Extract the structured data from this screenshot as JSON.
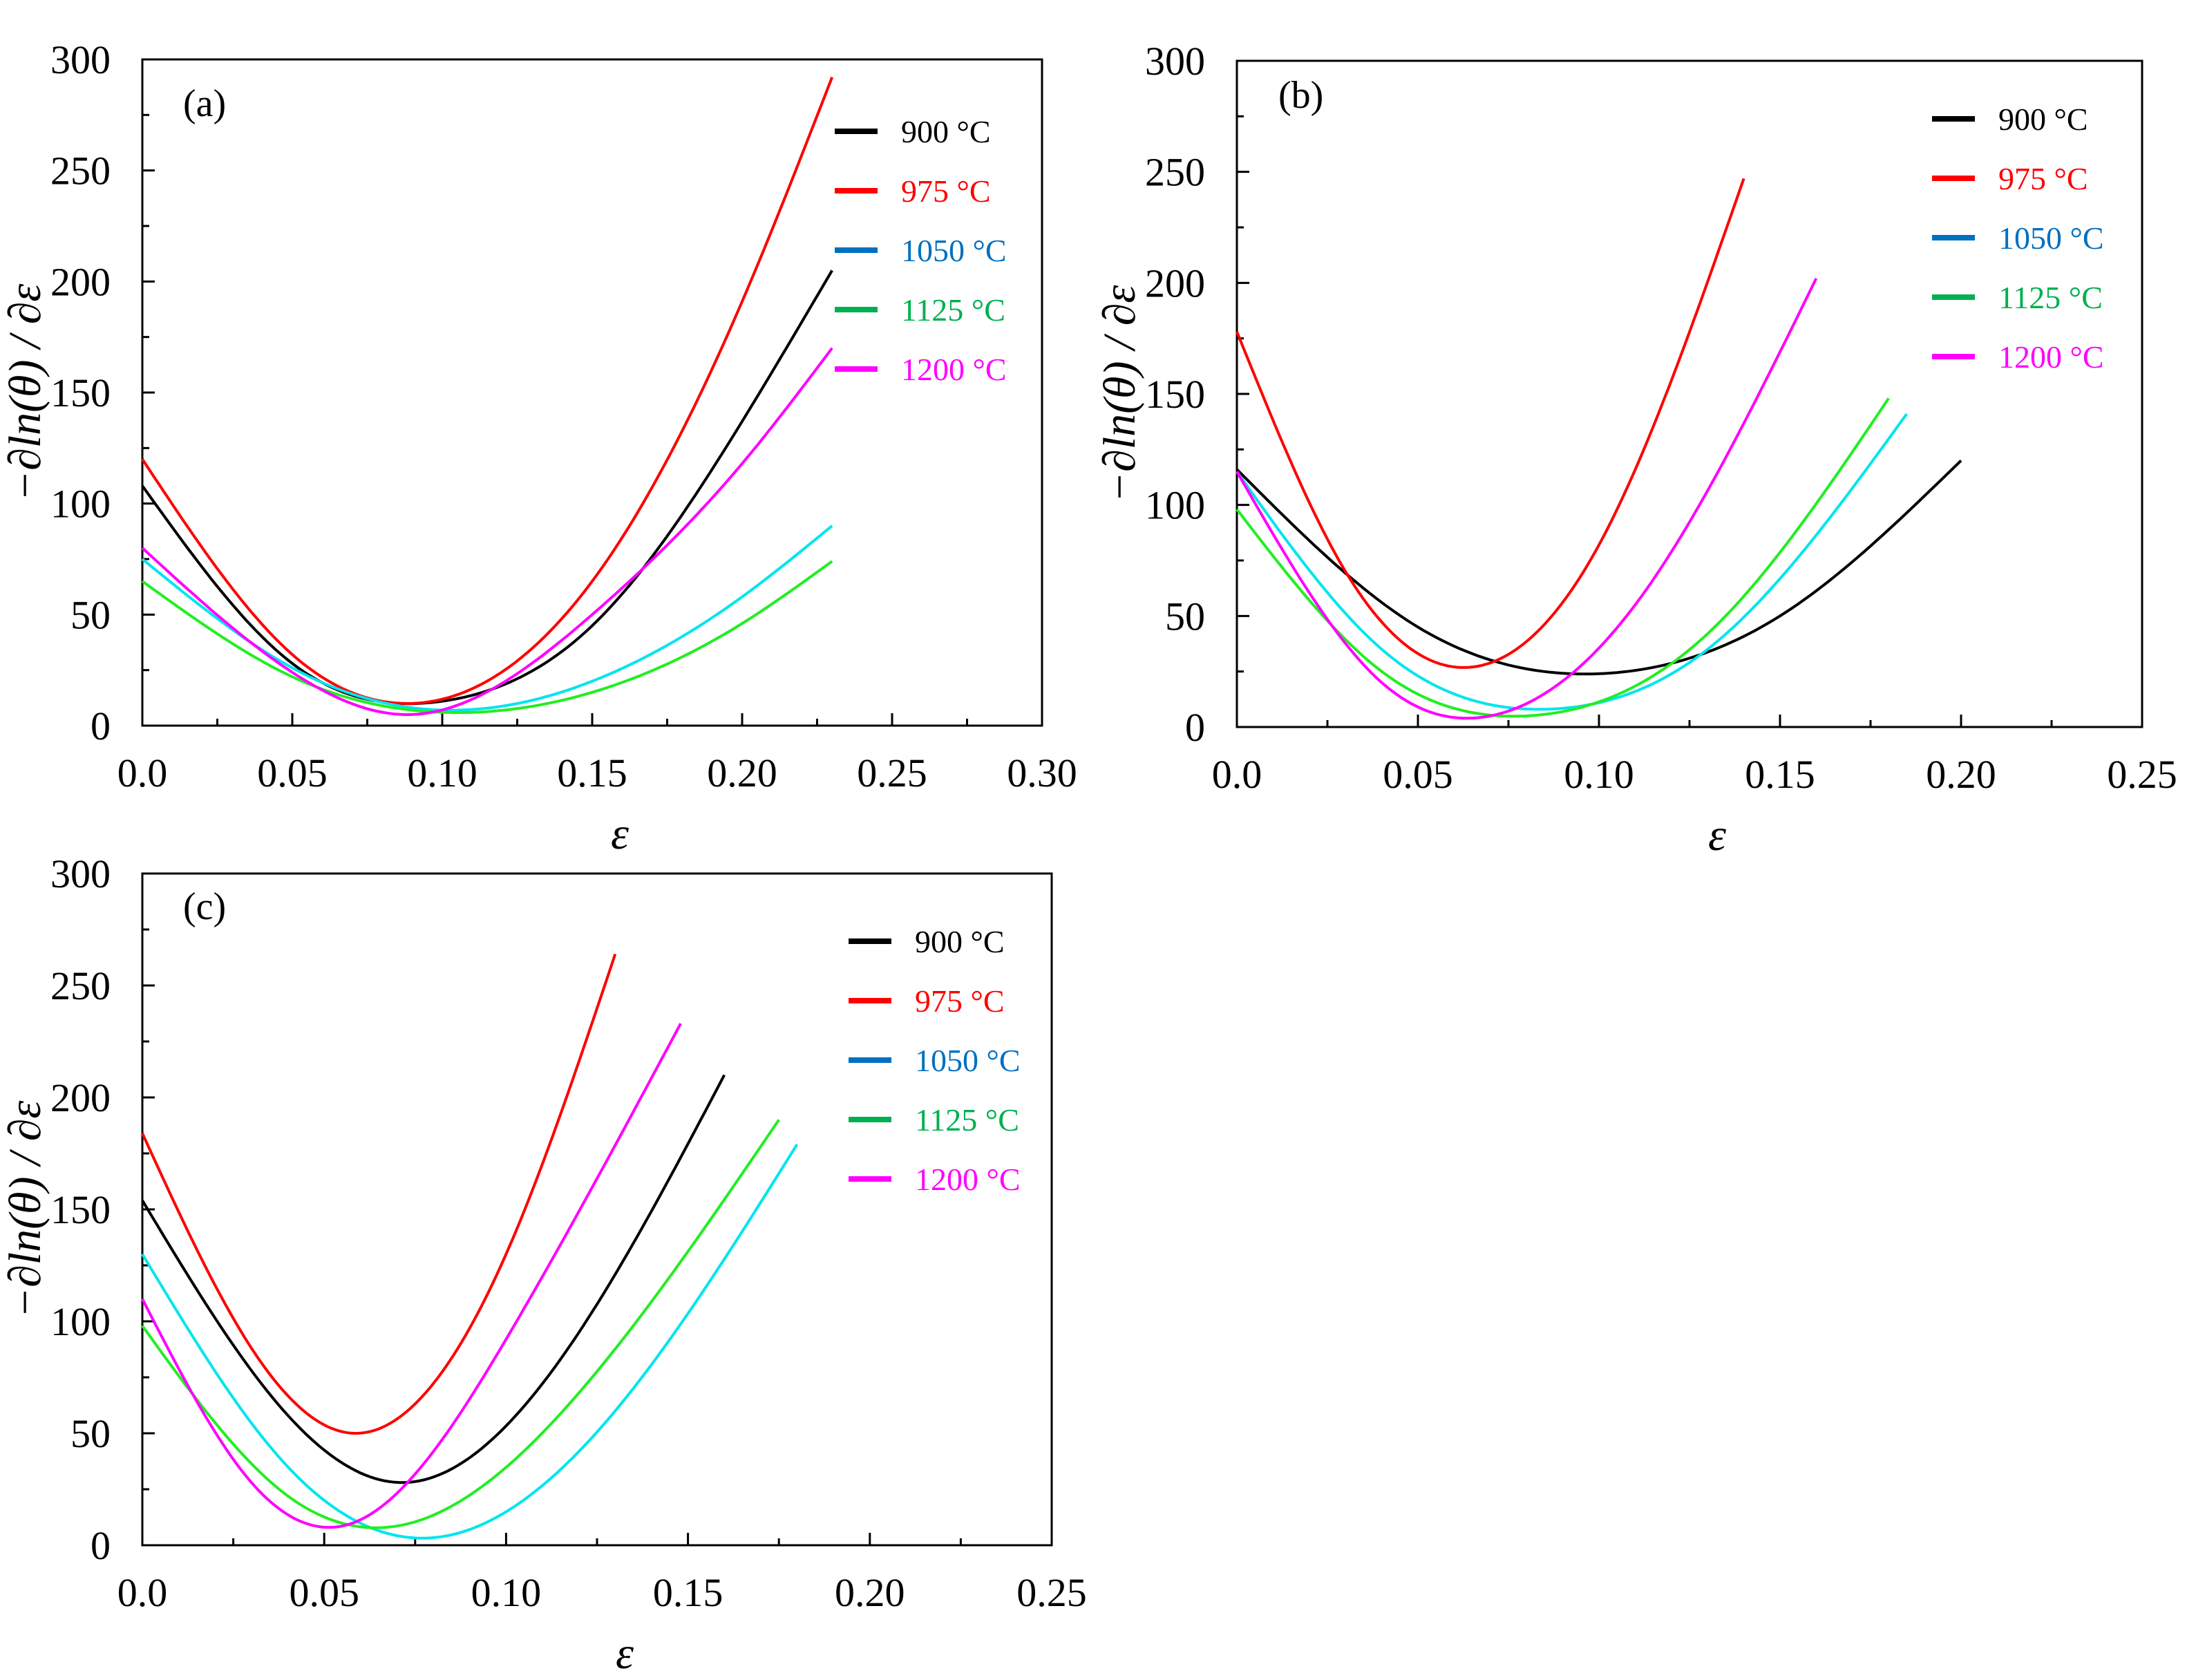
{
  "figure": {
    "charts": [
      {
        "id": "a",
        "panel_label": "(a)"
      },
      {
        "id": "b",
        "panel_label": "(b)"
      },
      {
        "id": "c",
        "panel_label": "(c)"
      }
    ]
  },
  "colors": {
    "900": "#000000",
    "975": "#ff0000",
    "1050_legend": "#0070c0",
    "1050_curve": "#00e5ee",
    "1125_legend": "#00b050",
    "1125_curve": "#22ee22",
    "1200": "#ff00ff"
  },
  "chart_data": [
    {
      "type": "line",
      "panel": "(a)",
      "xlabel": "ε",
      "ylabel": "−∂ln(θ) / ∂ε",
      "xlim": [
        0.0,
        0.3
      ],
      "ylim": [
        0,
        300
      ],
      "xticks": [
        "0.0",
        "0.05",
        "0.10",
        "0.15",
        "0.20",
        "0.25",
        "0.30"
      ],
      "yticks": [
        "0",
        "50",
        "100",
        "150",
        "200",
        "250",
        "300"
      ],
      "legend": [
        "900 °C",
        "975 °C",
        "1050 °C",
        "1125 °C",
        "1200 °C"
      ],
      "series": [
        {
          "name": "900 °C",
          "x": [
            0.0,
            0.05,
            0.1,
            0.15,
            0.2,
            0.23
          ],
          "y": [
            108,
            28,
            11,
            45,
            137,
            205
          ]
        },
        {
          "name": "975 °C",
          "x": [
            0.0,
            0.05,
            0.09,
            0.15,
            0.2,
            0.23
          ],
          "y": [
            120,
            32,
            10,
            65,
            191,
            292
          ]
        },
        {
          "name": "1050 °C",
          "x": [
            0.0,
            0.05,
            0.1,
            0.15,
            0.2,
            0.23
          ],
          "y": [
            75,
            26,
            7,
            20,
            58,
            90
          ]
        },
        {
          "name": "1125 °C",
          "x": [
            0.0,
            0.05,
            0.1,
            0.15,
            0.2,
            0.23
          ],
          "y": [
            65,
            22,
            6,
            15,
            46,
            74
          ]
        },
        {
          "name": "1200 °C",
          "x": [
            0.0,
            0.05,
            0.09,
            0.15,
            0.2,
            0.23
          ],
          "y": [
            80,
            24,
            5,
            50,
            118,
            170
          ]
        }
      ]
    },
    {
      "type": "line",
      "panel": "(b)",
      "xlabel": "ε",
      "ylabel": "−∂ln(θ) / ∂ε",
      "xlim": [
        0.0,
        0.25
      ],
      "ylim": [
        0,
        300
      ],
      "xticks": [
        "0.0",
        "0.05",
        "0.10",
        "0.15",
        "0.20",
        "0.25"
      ],
      "yticks": [
        "0",
        "50",
        "100",
        "150",
        "200",
        "250",
        "300"
      ],
      "legend": [
        "900 °C",
        "975 °C",
        "1050 °C",
        "1125 °C",
        "1200 °C"
      ],
      "series": [
        {
          "name": "900 °C",
          "x": [
            0.0,
            0.05,
            0.1,
            0.15,
            0.2
          ],
          "y": [
            116,
            45,
            24,
            50,
            120
          ]
        },
        {
          "name": "975 °C",
          "x": [
            0.0,
            0.03,
            0.065,
            0.1,
            0.14
          ],
          "y": [
            178,
            70,
            27,
            82,
            247
          ]
        },
        {
          "name": "1050 °C",
          "x": [
            0.0,
            0.04,
            0.085,
            0.13,
            0.185
          ],
          "y": [
            115,
            35,
            8,
            35,
            141
          ]
        },
        {
          "name": "1125 °C",
          "x": [
            0.0,
            0.04,
            0.08,
            0.13,
            0.18
          ],
          "y": [
            98,
            25,
            5,
            42,
            148
          ]
        },
        {
          "name": "1200 °C",
          "x": [
            0.0,
            0.04,
            0.07,
            0.11,
            0.16
          ],
          "y": [
            115,
            20,
            5,
            55,
            202
          ]
        }
      ]
    },
    {
      "type": "line",
      "panel": "(c)",
      "xlabel": "ε",
      "ylabel": "−∂ln(θ) / ∂ε",
      "xlim": [
        0.0,
        0.25
      ],
      "ylim": [
        0,
        300
      ],
      "xticks": [
        "0.0",
        "0.05",
        "0.10",
        "0.15",
        "0.20",
        "0.25"
      ],
      "yticks": [
        "0",
        "50",
        "100",
        "150",
        "200",
        "250",
        "300"
      ],
      "legend": [
        "900 °C",
        "975 °C",
        "1050 °C",
        "1125 °C",
        "1200 °C"
      ],
      "series": [
        {
          "name": "900 °C",
          "x": [
            0.0,
            0.04,
            0.072,
            0.12,
            0.16
          ],
          "y": [
            154,
            58,
            28,
            95,
            210
          ]
        },
        {
          "name": "975 °C",
          "x": [
            0.0,
            0.03,
            0.058,
            0.1,
            0.13
          ],
          "y": [
            184,
            88,
            50,
            130,
            264
          ]
        },
        {
          "name": "1050 °C",
          "x": [
            0.0,
            0.04,
            0.083,
            0.13,
            0.18
          ],
          "y": [
            130,
            35,
            4,
            60,
            179
          ]
        },
        {
          "name": "1125 °C",
          "x": [
            0.0,
            0.04,
            0.074,
            0.12,
            0.175
          ],
          "y": [
            98,
            22,
            10,
            68,
            190
          ]
        },
        {
          "name": "1200 °C",
          "x": [
            0.0,
            0.03,
            0.058,
            0.1,
            0.148
          ],
          "y": [
            110,
            28,
            10,
            92,
            233
          ]
        }
      ]
    }
  ]
}
